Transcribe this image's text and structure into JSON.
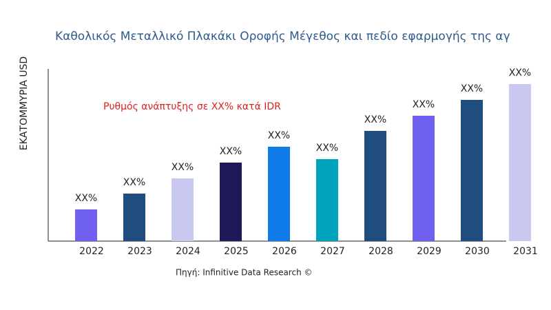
{
  "chart_data": {
    "type": "bar",
    "title": "Καθολικός Μεταλλικό Πλακάκι Οροφής Μέγεθος και πεδίο εφαρμογής της αγ",
    "y_label": "ΕΚΑΤΟΜΜΥΡΙΑ USD",
    "annotation": "Ρυθμός ανάπτυξης σε XX% κατά IDR",
    "source": "Πηγή: Infinitive Data Research ©",
    "categories": [
      "2022",
      "2023",
      "2024",
      "2025",
      "2026",
      "2027",
      "2028",
      "2029",
      "2030",
      "2031"
    ],
    "values": [
      46,
      69,
      91,
      114,
      137,
      119,
      160,
      182,
      205,
      228
    ],
    "value_labels": [
      "XX%",
      "XX%",
      "XX%",
      "XX%",
      "XX%",
      "XX%",
      "XX%",
      "XX%",
      "XX%",
      "XX%"
    ],
    "colors": [
      "#7060f0",
      "#1f4e7e",
      "#c8c8f0",
      "#1e1a5a",
      "#0e7be8",
      "#00a3bb",
      "#1f4e7e",
      "#7060f0",
      "#1f4e7e",
      "#c8c8f0"
    ],
    "ylim": [
      0,
      250
    ]
  }
}
